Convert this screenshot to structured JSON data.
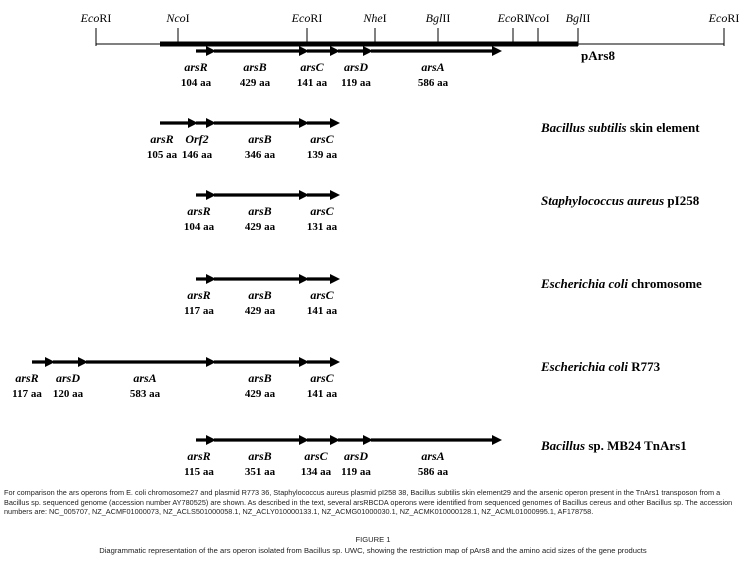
{
  "restriction_map": {
    "sites": [
      {
        "label": "EcoRI",
        "italic": "Eco",
        "roman": "RI"
      },
      {
        "label": "NcoI",
        "italic": "Nco",
        "roman": "I"
      },
      {
        "label": "EcoRI",
        "italic": "Eco",
        "roman": "RI"
      },
      {
        "label": "NheI",
        "italic": "Nhe",
        "roman": "I"
      },
      {
        "label": "BglII",
        "italic": "Bgl",
        "roman": "II"
      },
      {
        "label": "EcoRI",
        "italic": "Eco",
        "roman": "RI"
      },
      {
        "label": "NcoI",
        "italic": "Nco",
        "roman": "I"
      },
      {
        "label": "BglII",
        "italic": "Bgl",
        "roman": "II"
      },
      {
        "label": "EcoRI",
        "italic": "Eco",
        "roman": "RI"
      }
    ]
  },
  "operons": [
    {
      "label_prefix": "",
      "organism": "",
      "suffix": "pArs8",
      "genes": [
        {
          "name": "arsR",
          "size": "104 aa"
        },
        {
          "name": "arsB",
          "size": "429 aa"
        },
        {
          "name": "arsC",
          "size": "141 aa"
        },
        {
          "name": "arsD",
          "size": "119 aa"
        },
        {
          "name": "arsA",
          "size": "586 aa"
        }
      ]
    },
    {
      "label_prefix": "",
      "organism": "Bacillus subtilis",
      "suffix": " skin element",
      "genes": [
        {
          "name": "arsR",
          "size": "105 aa"
        },
        {
          "name": "Orf2",
          "size": "146 aa"
        },
        {
          "name": "arsB",
          "size": "346 aa"
        },
        {
          "name": "arsC",
          "size": "139 aa"
        }
      ]
    },
    {
      "label_prefix": "",
      "organism": "Staphylococcus aureus",
      "suffix": " pI258",
      "genes": [
        {
          "name": "arsR",
          "size": "104 aa"
        },
        {
          "name": "arsB",
          "size": "429 aa"
        },
        {
          "name": "arsC",
          "size": "131 aa"
        }
      ]
    },
    {
      "label_prefix": "",
      "organism": "Escherichia coli",
      "suffix": " chromosome",
      "genes": [
        {
          "name": "arsR",
          "size": "117 aa"
        },
        {
          "name": "arsB",
          "size": "429 aa"
        },
        {
          "name": "arsC",
          "size": "141 aa"
        }
      ]
    },
    {
      "label_prefix": "",
      "organism": "Escherichia coli",
      "suffix": " R773",
      "genes": [
        {
          "name": "arsR",
          "size": "117 aa"
        },
        {
          "name": "arsD",
          "size": "120 aa"
        },
        {
          "name": "arsA",
          "size": "583 aa"
        },
        {
          "name": "arsB",
          "size": "429 aa"
        },
        {
          "name": "arsC",
          "size": "141 aa"
        }
      ]
    },
    {
      "label_prefix": "",
      "organism": "Bacillus",
      "suffix": " sp. MB24 TnArs1",
      "genes": [
        {
          "name": "arsR",
          "size": "115 aa"
        },
        {
          "name": "arsB",
          "size": "351 aa"
        },
        {
          "name": "arsC",
          "size": "134 aa"
        },
        {
          "name": "arsD",
          "size": "119 aa"
        },
        {
          "name": "arsA",
          "size": "586 aa"
        }
      ]
    }
  ],
  "caption": {
    "text": "For comparison the ars operons from E. coli chromosome27 and plasmid R773 36, Staphylococcus aureus plasmid pI258 38, Bacillus subtilis skin element29 and the arsenic operon present in the TnArs1 transposon from a Bacillus sp. sequenced genome (accession number AY780525) are shown. As described in the text, several arsRBCDA operons were identified from sequenced genomes of Bacillus cereus and other Bacillus sp. The accession numbers are: NC_005707, NZ_ACMF01000073, NZ_ACLS501000058.1, NZ_ACLY010000133.1, NZ_ACMG01000030.1, NZ_ACMK010000128.1, NZ_ACML01000995.1, AF178758.",
    "figure_label": "FIGURE 1",
    "figure_title": "Diagrammatic representation of the ars operon isolated from Bacillus sp. UWC, showing the restriction map of pArs8 and the amino acid sizes of the gene products"
  }
}
